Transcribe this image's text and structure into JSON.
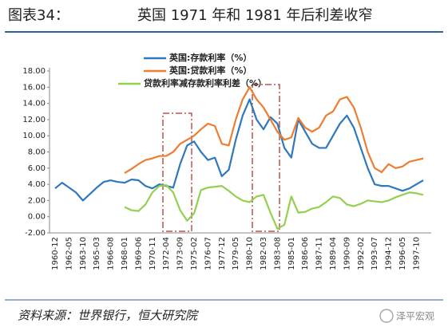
{
  "chart_data": {
    "type": "line",
    "figure_label": "图表34：",
    "title": "英国 1971 年和 1981 年后利差收窄",
    "source": "资料来源：世界银行，恒大研究院",
    "watermark": "泽平宏观",
    "categories": [
      "1960-12",
      null,
      "1962-05",
      null,
      "1963-10",
      null,
      "1965-03",
      null,
      "1966-08",
      null,
      "1968-01",
      null,
      "1969-06",
      null,
      "1970-11",
      null,
      "1972-04",
      null,
      "1973-09",
      null,
      "1975-02",
      null,
      "1976-07",
      null,
      "1977-12",
      null,
      "1979-05",
      null,
      "1980-10",
      null,
      "1982-03",
      null,
      "1983-08",
      null,
      "1985-01",
      null,
      "1986-06",
      null,
      "1987-11",
      null,
      "1989-04",
      null,
      "1990-09",
      null,
      "1992-02",
      null,
      "1993-07",
      null,
      "1994-12",
      null,
      "1996-05",
      null,
      "1997-10",
      null
    ],
    "series": [
      {
        "name": "英国:存款利率（%）",
        "color": "#2f78bd",
        "values": [
          3.5,
          4.2,
          3.6,
          3.0,
          2.0,
          2.8,
          3.6,
          4.3,
          4.5,
          4.3,
          4.2,
          4.6,
          4.5,
          3.8,
          3.5,
          4.0,
          3.8,
          3.6,
          6.5,
          8.8,
          9.3,
          8.0,
          7.0,
          7.3,
          5.0,
          5.8,
          9.5,
          12.5,
          14.5,
          12.0,
          10.8,
          12.3,
          11.5,
          8.5,
          7.3,
          12.0,
          10.5,
          9.0,
          8.5,
          8.5,
          10.0,
          11.5,
          12.5,
          11.0,
          8.5,
          6.0,
          4.0,
          3.8,
          3.8,
          3.5,
          3.2,
          3.5,
          4.0,
          4.5
        ]
      },
      {
        "name": "英国:贷款利率（%）",
        "color": "#ed7d31",
        "values": [
          null,
          null,
          null,
          null,
          null,
          null,
          null,
          null,
          null,
          null,
          5.4,
          5.9,
          6.5,
          7.0,
          7.2,
          7.5,
          7.5,
          8.0,
          9.0,
          9.5,
          10.0,
          10.8,
          11.5,
          11.2,
          9.0,
          8.8,
          12.0,
          14.5,
          16.0,
          14.5,
          13.5,
          12.0,
          10.5,
          9.5,
          9.8,
          12.2,
          11.0,
          10.5,
          11.0,
          12.5,
          13.0,
          14.5,
          14.8,
          13.5,
          11.0,
          8.0,
          6.0,
          5.5,
          6.5,
          6.0,
          6.2,
          6.8,
          7.0,
          7.2
        ]
      },
      {
        "name": "贷款利率减存款利率利差（%）",
        "color": "#92d050",
        "values": [
          null,
          null,
          null,
          null,
          null,
          null,
          null,
          null,
          null,
          null,
          1.2,
          0.8,
          0.7,
          1.5,
          3.0,
          3.8,
          3.9,
          3.0,
          0.8,
          -0.5,
          0.4,
          3.3,
          3.6,
          3.7,
          3.8,
          3.2,
          2.5,
          2.0,
          1.8,
          2.5,
          2.7,
          0.5,
          -1.5,
          -1.0,
          2.5,
          0.5,
          0.6,
          1.0,
          1.2,
          1.8,
          2.5,
          2.3,
          1.5,
          1.3,
          1.6,
          2.0,
          1.9,
          1.8,
          2.0,
          2.4,
          2.7,
          3.0,
          2.9,
          2.7
        ]
      }
    ],
    "ylim": [
      -2,
      18
    ],
    "yticks": [
      {
        "value": -2,
        "label": "-2.00"
      },
      {
        "value": 0,
        "label": "0.00"
      },
      {
        "value": 2,
        "label": "2.00"
      },
      {
        "value": 4,
        "label": "4.00"
      },
      {
        "value": 6,
        "label": "6.00"
      },
      {
        "value": 8,
        "label": "8.00"
      },
      {
        "value": 10,
        "label": "10.00"
      },
      {
        "value": 12,
        "label": "12.00"
      },
      {
        "value": 14,
        "label": "14.00"
      },
      {
        "value": 16,
        "label": "16.00"
      },
      {
        "value": 18,
        "label": "18.00"
      }
    ],
    "grid": false
  }
}
